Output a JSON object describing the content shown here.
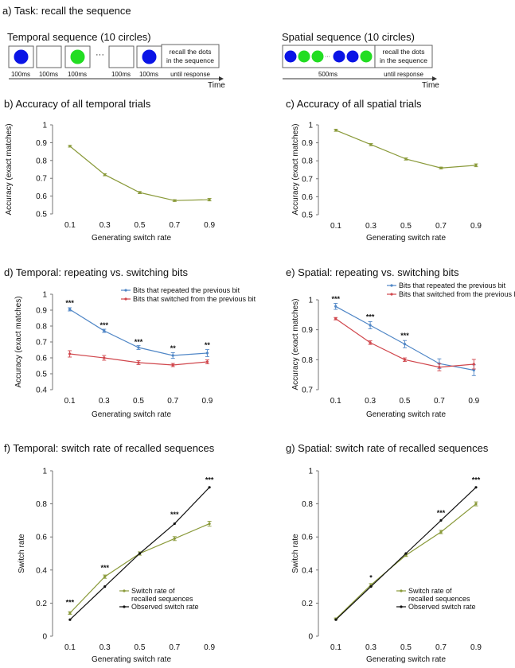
{
  "task": {
    "title": "a) Task: recall the sequence",
    "temporal": {
      "title": "Temporal sequence (10 circles)",
      "circle_colors": [
        "#0a14e6",
        null,
        "#22dd22",
        null,
        "#0a14e6"
      ],
      "ellipsis": "···",
      "recall_text": [
        "recall the dots",
        "in the sequence"
      ],
      "durations": [
        "100ms",
        "100ms",
        "100ms",
        "100ms",
        "100ms"
      ],
      "until": "until response",
      "time_label": "Time"
    },
    "spatial": {
      "title": "Spatial sequence (10 circles)",
      "circle_colors": [
        "#0a14e6",
        "#22dd22",
        "#22dd22",
        "#0a14e6",
        "#0a14e6",
        "#22dd22"
      ],
      "ellipsis": "···",
      "recall_text": [
        "recall the dots",
        "in the sequence"
      ],
      "duration": "500ms",
      "until": "until response",
      "time_label": "Time"
    }
  },
  "colors": {
    "green_series": "#8a9a3a",
    "blue_series": "#4f86c6",
    "red_series": "#d0464c",
    "black_series": "#111111",
    "axis": "#666666"
  },
  "chart_data": [
    {
      "id": "b",
      "type": "line",
      "title": "b) Accuracy of all temporal trials",
      "xlabel": "Generating switch rate",
      "ylabel": "Accuracy (exact matches)",
      "x": [
        0.1,
        0.3,
        0.5,
        0.7,
        0.9
      ],
      "xticks": [
        "0.1",
        "0.3",
        "0.5",
        "0.7",
        "0.9"
      ],
      "ylim": [
        0.5,
        1
      ],
      "yticks": [
        "0.5",
        "0.6",
        "0.7",
        "0.8",
        "0.9",
        "1"
      ],
      "ytick_values": [
        0.5,
        0.6,
        0.7,
        0.8,
        0.9,
        1
      ],
      "series": [
        {
          "values": [
            0.88,
            0.72,
            0.62,
            0.575,
            0.58
          ],
          "err": [
            0.005,
            0.006,
            0.006,
            0.005,
            0.007
          ],
          "color": "#8a9a3a"
        }
      ],
      "legend": [],
      "significance": []
    },
    {
      "id": "c",
      "type": "line",
      "title": "c) Accuracy of all spatial trials",
      "xlabel": "Generating switch rate",
      "ylabel": "Accuracy (exact matches)",
      "x": [
        0.1,
        0.3,
        0.5,
        0.7,
        0.9
      ],
      "xticks": [
        "0.1",
        "0.3",
        "0.5",
        "0.7",
        "0.9"
      ],
      "ylim": [
        0.5,
        1
      ],
      "yticks": [
        "0.5",
        "0.6",
        "0.7",
        "0.8",
        "0.9",
        "1"
      ],
      "ytick_values": [
        0.5,
        0.6,
        0.7,
        0.8,
        0.9,
        1
      ],
      "series": [
        {
          "values": [
            0.97,
            0.89,
            0.81,
            0.76,
            0.775
          ],
          "err": [
            0.006,
            0.006,
            0.006,
            0.005,
            0.008
          ],
          "color": "#8a9a3a"
        }
      ],
      "legend": [],
      "significance": []
    },
    {
      "id": "d",
      "type": "line",
      "title": "d) Temporal: repeating vs. switching bits",
      "xlabel": "Generating switch rate",
      "ylabel": "Accuracy (exact matches)",
      "x": [
        0.1,
        0.3,
        0.5,
        0.7,
        0.9
      ],
      "xticks": [
        "0.1",
        "0.3",
        "0.5",
        "0.7",
        "0.9"
      ],
      "ylim": [
        0.4,
        1
      ],
      "yticks": [
        "0.4",
        "0.5",
        "0.6",
        "0.7",
        "0.8",
        "0.9",
        "1"
      ],
      "ytick_values": [
        0.4,
        0.5,
        0.6,
        0.7,
        0.8,
        0.9,
        1
      ],
      "series": [
        {
          "name": "Bits that repeated the previous bit",
          "values": [
            0.905,
            0.77,
            0.665,
            0.615,
            0.63
          ],
          "err": [
            0.01,
            0.01,
            0.012,
            0.018,
            0.022
          ],
          "color": "#4f86c6"
        },
        {
          "name": "Bits that switched from the previous bit",
          "values": [
            0.625,
            0.6,
            0.57,
            0.555,
            0.575
          ],
          "err": [
            0.02,
            0.015,
            0.012,
            0.01,
            0.012
          ],
          "color": "#d0464c"
        }
      ],
      "legend": [
        "Bits that repeated the previous bit",
        "Bits that switched from the previous bit"
      ],
      "significance": [
        "***",
        "***",
        "***",
        "**",
        "**"
      ],
      "significance_y": [
        0.93,
        0.79,
        0.685,
        0.645,
        0.665
      ]
    },
    {
      "id": "e",
      "type": "line",
      "title": "e) Spatial: repeating vs. switching bits",
      "xlabel": "Generating switch rate",
      "ylabel": "Accuracy (exact matches)",
      "x": [
        0.1,
        0.3,
        0.5,
        0.7,
        0.9
      ],
      "xticks": [
        "0.1",
        "0.3",
        "0.5",
        "0.7",
        "0.9"
      ],
      "ylim": [
        0.7,
        1
      ],
      "yticks": [
        "0.7",
        "0.8",
        "0.9",
        "1"
      ],
      "ytick_values": [
        0.7,
        0.8,
        0.9,
        1
      ],
      "series": [
        {
          "name": "Bits that repeated the previous bit",
          "values": [
            0.978,
            0.915,
            0.852,
            0.787,
            0.765
          ],
          "err": [
            0.01,
            0.012,
            0.012,
            0.016,
            0.018
          ],
          "color": "#4f86c6"
        },
        {
          "name": "Bits that switched from the previous bit",
          "values": [
            0.937,
            0.857,
            0.8,
            0.775,
            0.785
          ],
          "err": [
            0.004,
            0.006,
            0.006,
            0.012,
            0.016
          ],
          "color": "#d0464c"
        }
      ],
      "legend": [
        "Bits that repeated the previous bit",
        "Bits that switched from the previous bit"
      ],
      "significance": [
        "***",
        "***",
        "***"
      ],
      "significance_y": [
        0.995,
        0.935,
        0.873
      ]
    },
    {
      "id": "f",
      "type": "line",
      "title": "f) Temporal: switch rate of recalled sequences",
      "xlabel": "Generating switch rate",
      "ylabel": "Switch rate",
      "x": [
        0.1,
        0.3,
        0.5,
        0.7,
        0.9
      ],
      "xticks": [
        "0.1",
        "0.3",
        "0.5",
        "0.7",
        "0.9"
      ],
      "ylim": [
        0,
        1
      ],
      "yticks": [
        "0",
        "0.2",
        "0.4",
        "0.6",
        "0.8",
        "1"
      ],
      "ytick_values": [
        0,
        0.2,
        0.4,
        0.6,
        0.8,
        1
      ],
      "series": [
        {
          "name": "Switch rate of recalled sequences",
          "values": [
            0.14,
            0.36,
            0.5,
            0.59,
            0.68
          ],
          "err": [
            0.008,
            0.01,
            0.01,
            0.012,
            0.015
          ],
          "color": "#8a9a3a"
        },
        {
          "name": "Observed switch rate",
          "values": [
            0.1,
            0.3,
            0.5,
            0.68,
            0.9
          ],
          "err": [
            0,
            0,
            0,
            0,
            0
          ],
          "color": "#111111"
        }
      ],
      "legend": [
        "Switch rate of recalled sequences",
        "Observed switch rate"
      ],
      "significance": [
        "***",
        "***",
        "",
        "***",
        "***"
      ],
      "significance_y": [
        0.19,
        0.4,
        0,
        0.72,
        0.93
      ]
    },
    {
      "id": "g",
      "type": "line",
      "title": "g) Spatial: switch rate of recalled sequences",
      "xlabel": "Generating switch rate",
      "ylabel": "Switch rate",
      "x": [
        0.1,
        0.3,
        0.5,
        0.7,
        0.9
      ],
      "xticks": [
        "0.1",
        "0.3",
        "0.5",
        "0.7",
        "0.9"
      ],
      "ylim": [
        0,
        1
      ],
      "yticks": [
        "0",
        "0.2",
        "0.4",
        "0.6",
        "0.8",
        "1"
      ],
      "ytick_values": [
        0,
        0.2,
        0.4,
        0.6,
        0.8,
        1
      ],
      "series": [
        {
          "name": "Switch rate of recalled sequences",
          "values": [
            0.105,
            0.31,
            0.49,
            0.63,
            0.8
          ],
          "err": [
            0.005,
            0.008,
            0.008,
            0.01,
            0.012
          ],
          "color": "#8a9a3a"
        },
        {
          "name": "Observed switch rate",
          "values": [
            0.1,
            0.3,
            0.5,
            0.7,
            0.9
          ],
          "err": [
            0,
            0,
            0,
            0,
            0
          ],
          "color": "#111111"
        }
      ],
      "legend": [
        "Switch rate of recalled sequences",
        "Observed switch rate"
      ],
      "significance": [
        "",
        "*",
        "",
        "***",
        "***"
      ],
      "significance_y": [
        0,
        0.34,
        0,
        0.73,
        0.93
      ]
    }
  ]
}
